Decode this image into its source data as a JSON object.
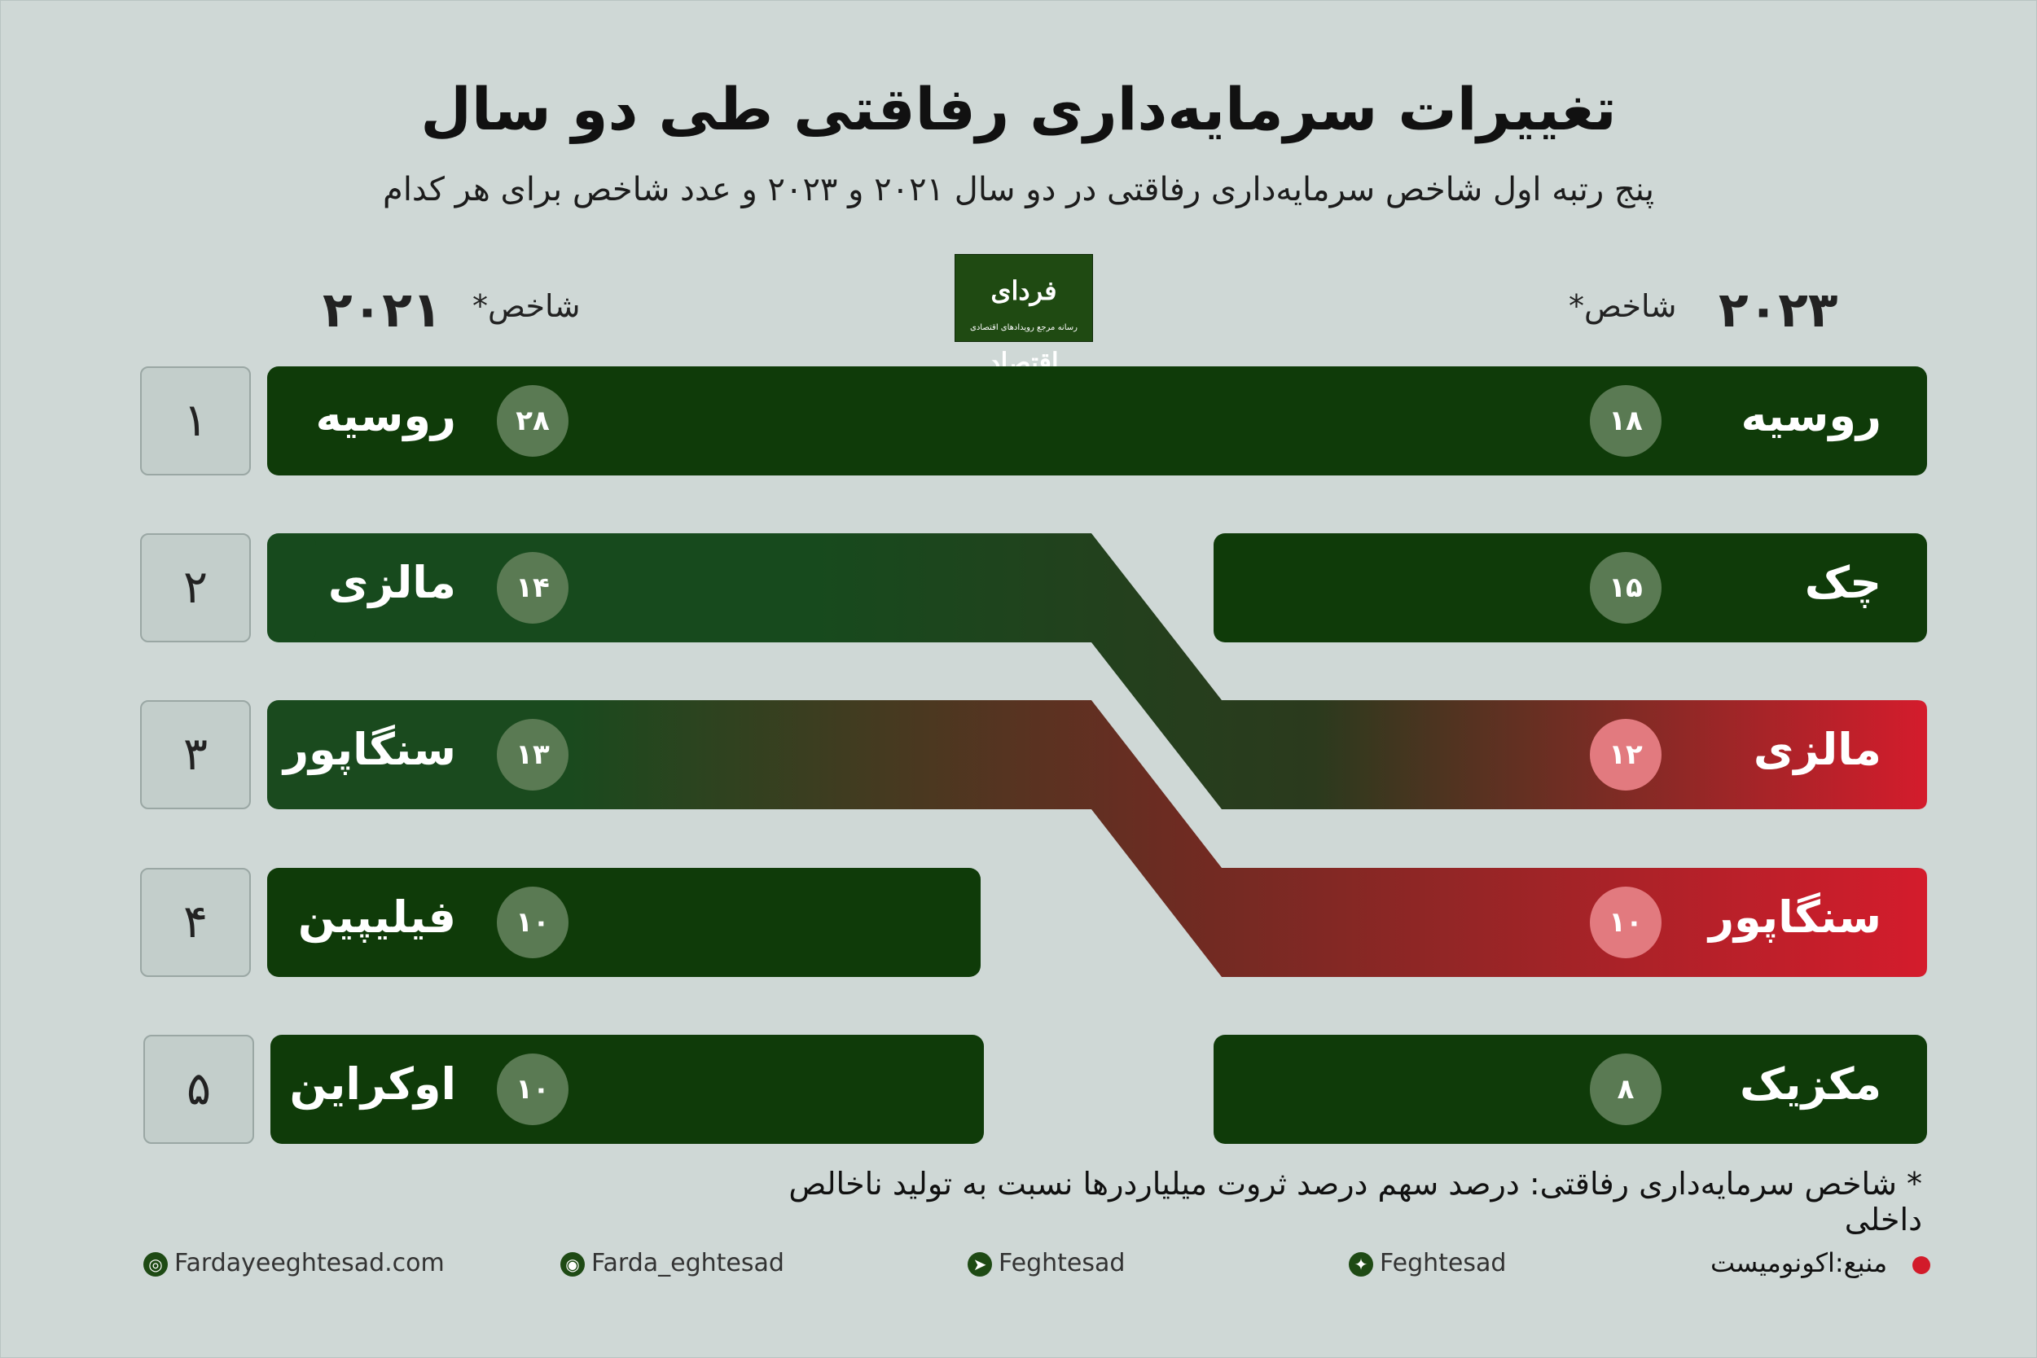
{
  "header": {
    "title": "تغییرات سرمایه‌داری رفاقتی طی دو سال",
    "subtitle": "پنج رتبه اول شاخص سرمایه‌داری رفاقتی در دو سال ۲۰۲۱ و ۲۰۲۳ و عدد شاخص برای هر کدام"
  },
  "columns": {
    "left_year": "۲۰۲۱",
    "left_label": "شاخص*",
    "right_year": "۲۰۲۳",
    "right_label": "شاخص*"
  },
  "logo": {
    "text": "فردای اقتصاد",
    "tagline": "رسانه مرجع رویدادهای اقتصادی"
  },
  "ranks": [
    "۱",
    "۲",
    "۳",
    "۴",
    "۵"
  ],
  "chart_data": {
    "type": "table",
    "series": [
      {
        "year": "۲۰۲۱",
        "countries": [
          "روسیه",
          "مالزی",
          "سنگاپور",
          "فیلیپین",
          "اوکراین"
        ],
        "values": [
          28,
          14,
          13,
          10,
          10
        ],
        "labels": [
          "۲۸",
          "۱۴",
          "۱۳",
          "۱۰",
          "۱۰"
        ]
      },
      {
        "year": "۲۰۲۳",
        "countries": [
          "روسیه",
          "چک",
          "مالزی",
          "سنگاپور",
          "مکزیک"
        ],
        "values": [
          18,
          15,
          12,
          10,
          8
        ],
        "labels": [
          "۱۸",
          "۱۵",
          "۱۲",
          "۱۰",
          "۸"
        ]
      }
    ],
    "links": [
      {
        "country": "روسیه",
        "from_rank": 1,
        "to_rank": 1
      },
      {
        "country": "مالزی",
        "from_rank": 2,
        "to_rank": 3
      },
      {
        "country": "سنگاپور",
        "from_rank": 3,
        "to_rank": 4
      }
    ],
    "colors": {
      "steady": "#0f3b09",
      "declined": "#d41c2c",
      "badge_green": "#5a7a53",
      "badge_red": "#e27a7f",
      "background": "#cfd8d6"
    }
  },
  "footnote": "* شاخص سرمایه‌داری رفاقتی: درصد سهم درصد ثروت میلیاردرها نسبت به تولید ناخالص داخلی",
  "footer": {
    "website": "Fardayeeghtesad.com",
    "instagram": "Farda_eghtesad",
    "telegram": "Feghtesad",
    "twitter": "Feghtesad",
    "source": "منبع:اکونومیست",
    "icons": [
      "globe-icon",
      "instagram-icon",
      "telegram-icon",
      "twitter-icon"
    ]
  }
}
